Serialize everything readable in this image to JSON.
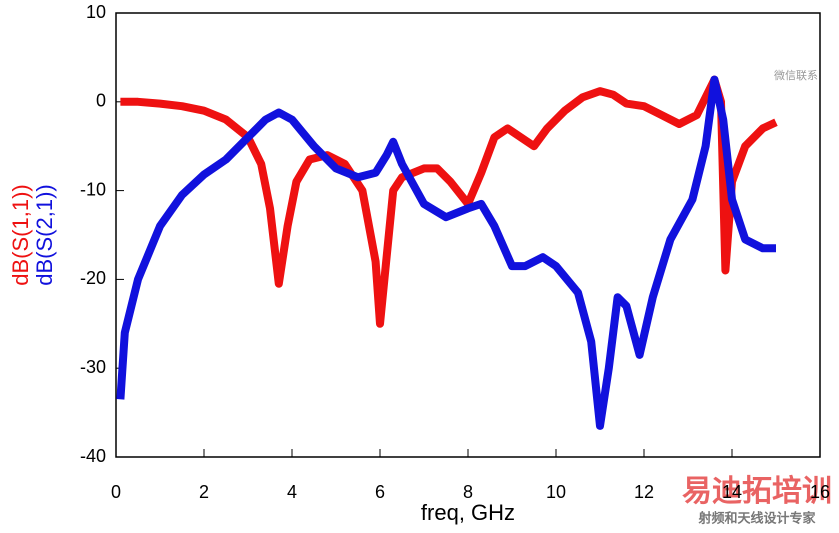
{
  "chart_data": {
    "type": "line",
    "xlabel": "freq, GHz",
    "xlim": [
      0,
      16
    ],
    "xticks": [
      0,
      2,
      4,
      6,
      8,
      10,
      12,
      14,
      16
    ],
    "ylim": [
      -40,
      10
    ],
    "yticks": [
      -40,
      -30,
      -20,
      -10,
      0,
      10
    ],
    "grid": false,
    "series": [
      {
        "name": "dB(S(1,1))",
        "color": "#ee1111",
        "x": [
          0.1,
          0.5,
          1,
          1.5,
          2,
          2.5,
          3,
          3.3,
          3.5,
          3.7,
          3.9,
          4.1,
          4.4,
          4.8,
          5.2,
          5.6,
          5.9,
          6.0,
          6.1,
          6.3,
          6.5,
          7.0,
          7.3,
          7.6,
          8.0,
          8.3,
          8.6,
          8.9,
          9.2,
          9.5,
          9.8,
          10.2,
          10.6,
          11.0,
          11.3,
          11.6,
          12.0,
          12.4,
          12.8,
          13.2,
          13.6,
          13.75,
          13.85,
          14.0,
          14.3,
          14.7,
          15.0
        ],
        "values": [
          0,
          0,
          -0.2,
          -0.5,
          -1,
          -2,
          -4,
          -7,
          -12,
          -20.5,
          -14,
          -9,
          -6.5,
          -6,
          -7,
          -10,
          -18,
          -25,
          -20,
          -10,
          -8.5,
          -7.5,
          -7.5,
          -9,
          -11.5,
          -8,
          -4,
          -3,
          -4,
          -5,
          -3,
          -1,
          0.5,
          1.2,
          0.8,
          -0.2,
          -0.5,
          -1.5,
          -2.5,
          -1.5,
          2.5,
          0,
          -19,
          -9,
          -5,
          -3,
          -2.3
        ]
      },
      {
        "name": "dB(S(2,1))",
        "color": "#1111dd",
        "x": [
          0.1,
          0.2,
          0.5,
          1,
          1.5,
          2,
          2.5,
          3,
          3.4,
          3.7,
          4.0,
          4.5,
          5.0,
          5.5,
          5.9,
          6.15,
          6.3,
          6.5,
          7.0,
          7.5,
          8.0,
          8.3,
          8.6,
          9.0,
          9.3,
          9.7,
          10.0,
          10.5,
          10.8,
          11.0,
          11.2,
          11.4,
          11.6,
          11.9,
          12.2,
          12.6,
          13.1,
          13.4,
          13.6,
          13.8,
          14.0,
          14.3,
          14.7,
          15.0
        ],
        "values": [
          -33.5,
          -26,
          -20,
          -14,
          -10.5,
          -8.2,
          -6.5,
          -4,
          -2,
          -1.2,
          -2,
          -5,
          -7.5,
          -8.5,
          -8,
          -6,
          -4.5,
          -7,
          -11.5,
          -13,
          -12,
          -11.5,
          -14,
          -18.5,
          -18.5,
          -17.5,
          -18.5,
          -21.5,
          -27,
          -36.5,
          -30,
          -22,
          -23,
          -28.5,
          -22,
          -15.5,
          -11,
          -5,
          2.5,
          -2,
          -11,
          -15.5,
          -16.5,
          -16.5
        ]
      }
    ]
  },
  "watermark": {
    "contact": "微信联系",
    "brand": "易迪拓培训",
    "slogan": "射频和天线设计专家"
  }
}
